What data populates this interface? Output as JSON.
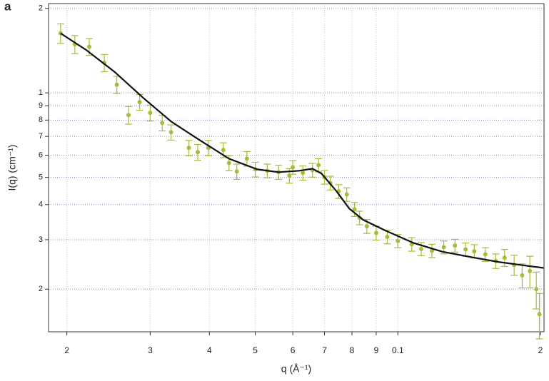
{
  "chart_data": {
    "type": "scatter",
    "panel": "a",
    "xlabel": "q (Å⁻¹)",
    "ylabel": "I(q) (cm⁻¹)",
    "xscale": "log",
    "yscale": "log",
    "grid": true,
    "xlim": [
      0.0183,
      0.2035
    ],
    "ylim": [
      1.41,
      20.8
    ],
    "xticks": [
      {
        "value": 0.02,
        "label": "2"
      },
      {
        "value": 0.03,
        "label": "3"
      },
      {
        "value": 0.04,
        "label": "4"
      },
      {
        "value": 0.05,
        "label": "5"
      },
      {
        "value": 0.06,
        "label": "6"
      },
      {
        "value": 0.07,
        "label": "7"
      },
      {
        "value": 0.08,
        "label": "8"
      },
      {
        "value": 0.09,
        "label": "9"
      },
      0.1,
      {
        "value": 0.2,
        "label": "2"
      }
    ],
    "yticks": [
      {
        "value": 20,
        "label": "2"
      },
      {
        "value": 10,
        "label": "1"
      },
      9,
      8,
      7,
      6,
      5,
      4,
      3,
      2
    ],
    "points": {
      "color": "#a4bd3a",
      "x": [
        0.0194,
        0.0208,
        0.0223,
        0.024,
        0.0255,
        0.027,
        0.0285,
        0.03,
        0.0318,
        0.0332,
        0.0362,
        0.0378,
        0.0398,
        0.0428,
        0.044,
        0.0457,
        0.048,
        0.05,
        0.053,
        0.056,
        0.059,
        0.06,
        0.063,
        0.066,
        0.068,
        0.07,
        0.072,
        0.075,
        0.078,
        0.081,
        0.083,
        0.086,
        0.09,
        0.095,
        0.1,
        0.107,
        0.112,
        0.118,
        0.125,
        0.132,
        0.139,
        0.145,
        0.153,
        0.161,
        0.168,
        0.176,
        0.183,
        0.19,
        0.196,
        0.199
      ],
      "values": [
        16.3,
        14.9,
        14.6,
        12.8,
        10.7,
        8.34,
        9.27,
        8.49,
        7.82,
        7.24,
        6.37,
        6.15,
        6.37,
        6.26,
        5.63,
        5.25,
        5.83,
        5.34,
        5.28,
        5.22,
        5.07,
        5.43,
        5.19,
        5.31,
        5.53,
        5.01,
        4.78,
        4.46,
        4.35,
        3.85,
        3.59,
        3.35,
        3.17,
        3.07,
        2.97,
        2.89,
        2.78,
        2.74,
        2.82,
        2.86,
        2.77,
        2.73,
        2.66,
        2.52,
        2.59,
        2.44,
        2.24,
        2.32,
        2.0,
        1.63
      ],
      "errors": [
        1.3,
        1.1,
        1.0,
        0.9,
        0.75,
        0.6,
        0.6,
        0.55,
        0.5,
        0.45,
        0.4,
        0.4,
        0.4,
        0.38,
        0.35,
        0.33,
        0.35,
        0.32,
        0.3,
        0.3,
        0.3,
        0.3,
        0.3,
        0.3,
        0.3,
        0.28,
        0.27,
        0.25,
        0.24,
        0.22,
        0.2,
        0.19,
        0.18,
        0.17,
        0.16,
        0.16,
        0.15,
        0.15,
        0.15,
        0.15,
        0.15,
        0.15,
        0.15,
        0.15,
        0.18,
        0.2,
        0.22,
        0.3,
        0.3,
        0.3
      ]
    },
    "fit": {
      "color": "#111111",
      "x": [
        0.0194,
        0.022,
        0.0252,
        0.029,
        0.0332,
        0.0383,
        0.044,
        0.0505,
        0.056,
        0.0619,
        0.066,
        0.069,
        0.074,
        0.079,
        0.0845,
        0.0943,
        0.108,
        0.124,
        0.143,
        0.163,
        0.188,
        0.203
      ],
      "values": [
        16.3,
        14.2,
        11.9,
        9.6,
        7.91,
        6.76,
        5.83,
        5.34,
        5.22,
        5.28,
        5.37,
        5.16,
        4.49,
        3.87,
        3.53,
        3.23,
        2.92,
        2.72,
        2.6,
        2.5,
        2.42,
        2.38
      ]
    }
  }
}
